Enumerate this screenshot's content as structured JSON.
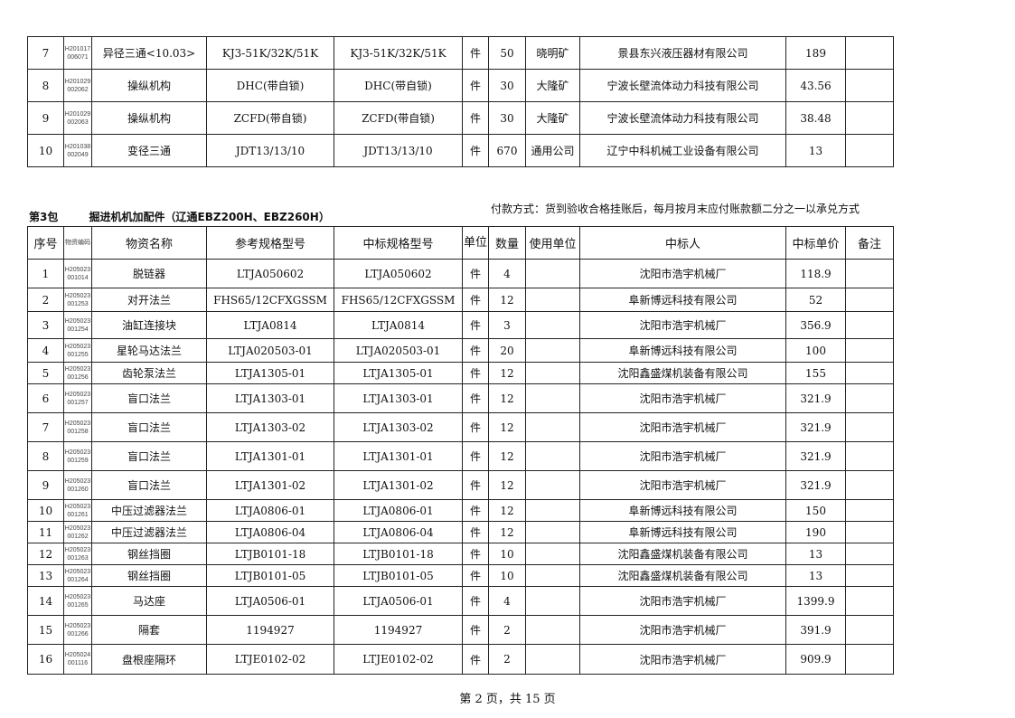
{
  "columns": [
    "序号",
    "物资编码",
    "物资名称",
    "参考规格型号",
    "中标规格型号",
    "单位",
    "数量",
    "使用单位",
    "中标人",
    "中标单价",
    "备注"
  ],
  "top_rows": [
    {
      "no": "7",
      "code": "H201017 006071",
      "name": "异径三通<10.03>",
      "ref": "KJ3-51K/32K/51K",
      "spec": "KJ3-51K/32K/51K",
      "unit": "件",
      "qty": "50",
      "user": "晓明矿",
      "winner": "景县东兴液压器材有限公司",
      "price": "189",
      "note": ""
    },
    {
      "no": "8",
      "code": "H201029 002062",
      "name": "操纵机构",
      "ref": "DHC(带自锁)",
      "spec": "DHC(带自锁)",
      "unit": "件",
      "qty": "30",
      "user": "大隆矿",
      "winner": "宁波长壁流体动力科技有限公司",
      "price": "43.56",
      "note": ""
    },
    {
      "no": "9",
      "code": "H201029 002063",
      "name": "操纵机构",
      "ref": "ZCFD(带自锁)",
      "spec": "ZCFD(带自锁)",
      "unit": "件",
      "qty": "30",
      "user": "大隆矿",
      "winner": "宁波长壁流体动力科技有限公司",
      "price": "38.48",
      "note": ""
    },
    {
      "no": "10",
      "code": "H201038 002049",
      "name": "变径三通",
      "ref": "JDT13/13/10",
      "spec": "JDT13/13/10",
      "unit": "件",
      "qty": "670",
      "user": "通用公司",
      "winner": "辽宁中科机械工业设备有限公司",
      "price": "13",
      "note": ""
    }
  ],
  "section": {
    "package": "第3包",
    "title": "掘进机机加配件（辽通EBZ200H、EBZ260H）",
    "payment": "付款方式：货到验收合格挂账后，每月按月末应付账款额二分之一以承兑方式"
  },
  "rows": [
    {
      "no": "1",
      "code": "H205023 001014",
      "name": "脱链器",
      "ref": "LTJA050602",
      "spec": "LTJA050602",
      "unit": "件",
      "qty": "4",
      "user": "",
      "winner": "沈阳市浩宇机械厂",
      "price": "118.9",
      "note": ""
    },
    {
      "no": "2",
      "code": "H205023 001253",
      "name": "对开法兰",
      "ref": "FHS65/12CFXGSSM",
      "spec": "FHS65/12CFXGSSM",
      "unit": "件",
      "qty": "12",
      "user": "",
      "winner": "阜新博远科技有限公司",
      "price": "52",
      "note": ""
    },
    {
      "no": "3",
      "code": "H205023 001254",
      "name": "油缸连接块",
      "ref": "LTJA0814",
      "spec": "LTJA0814",
      "unit": "件",
      "qty": "3",
      "user": "",
      "winner": "沈阳市浩宇机械厂",
      "price": "356.9",
      "note": ""
    },
    {
      "no": "4",
      "code": "H205023 001255",
      "name": "星轮马达法兰",
      "ref": "LTJA020503-01",
      "spec": "LTJA020503-01",
      "unit": "件",
      "qty": "20",
      "user": "",
      "winner": "阜新博远科技有限公司",
      "price": "100",
      "note": ""
    },
    {
      "no": "5",
      "code": "H205023 001256",
      "name": "齿轮泵法兰",
      "ref": "LTJA1305-01",
      "spec": "LTJA1305-01",
      "unit": "件",
      "qty": "12",
      "user": "",
      "winner": "沈阳鑫盛煤机装备有限公司",
      "price": "155",
      "note": ""
    },
    {
      "no": "6",
      "code": "H205023 001257",
      "name": "盲口法兰",
      "ref": "LTJA1303-01",
      "spec": "LTJA1303-01",
      "unit": "件",
      "qty": "12",
      "user": "",
      "winner": "沈阳市浩宇机械厂",
      "price": "321.9",
      "note": ""
    },
    {
      "no": "7",
      "code": "H205023 001258",
      "name": "盲口法兰",
      "ref": "LTJA1303-02",
      "spec": "LTJA1303-02",
      "unit": "件",
      "qty": "12",
      "user": "",
      "winner": "沈阳市浩宇机械厂",
      "price": "321.9",
      "note": ""
    },
    {
      "no": "8",
      "code": "H205023 001259",
      "name": "盲口法兰",
      "ref": "LTJA1301-01",
      "spec": "LTJA1301-01",
      "unit": "件",
      "qty": "12",
      "user": "",
      "winner": "沈阳市浩宇机械厂",
      "price": "321.9",
      "note": ""
    },
    {
      "no": "9",
      "code": "H205023 001260",
      "name": "盲口法兰",
      "ref": "LTJA1301-02",
      "spec": "LTJA1301-02",
      "unit": "件",
      "qty": "12",
      "user": "",
      "winner": "沈阳市浩宇机械厂",
      "price": "321.9",
      "note": ""
    },
    {
      "no": "10",
      "code": "H205023 001261",
      "name": "中压过滤器法兰",
      "ref": "LTJA0806-01",
      "spec": "LTJA0806-01",
      "unit": "件",
      "qty": "12",
      "user": "",
      "winner": "阜新博远科技有限公司",
      "price": "150",
      "note": ""
    },
    {
      "no": "11",
      "code": "H205023 001262",
      "name": "中压过滤器法兰",
      "ref": "LTJA0806-04",
      "spec": "LTJA0806-04",
      "unit": "件",
      "qty": "12",
      "user": "",
      "winner": "阜新博远科技有限公司",
      "price": "190",
      "note": ""
    },
    {
      "no": "12",
      "code": "H205023 001263",
      "name": "钢丝挡圈",
      "ref": "LTJB0101-18",
      "spec": "LTJB0101-18",
      "unit": "件",
      "qty": "10",
      "user": "",
      "winner": "沈阳鑫盛煤机装备有限公司",
      "price": "13",
      "note": ""
    },
    {
      "no": "13",
      "code": "H205023 001264",
      "name": "钢丝挡圈",
      "ref": "LTJB0101-05",
      "spec": "LTJB0101-05",
      "unit": "件",
      "qty": "10",
      "user": "",
      "winner": "沈阳鑫盛煤机装备有限公司",
      "price": "13",
      "note": ""
    },
    {
      "no": "14",
      "code": "H205023 001265",
      "name": "马达座",
      "ref": "LTJA0506-01",
      "spec": "LTJA0506-01",
      "unit": "件",
      "qty": "4",
      "user": "",
      "winner": "沈阳市浩宇机械厂",
      "price": "1399.9",
      "note": ""
    },
    {
      "no": "15",
      "code": "H205023 001266",
      "name": "隔套",
      "ref": "1194927",
      "spec": "1194927",
      "unit": "件",
      "qty": "2",
      "user": "",
      "winner": "沈阳市浩宇机械厂",
      "price": "391.9",
      "note": ""
    },
    {
      "no": "16",
      "code": "H205024 001116",
      "name": "盘根座隔环",
      "ref": "LTJE0102-02",
      "spec": "LTJE0102-02",
      "unit": "件",
      "qty": "2",
      "user": "",
      "winner": "沈阳市浩宇机械厂",
      "price": "909.9",
      "note": ""
    }
  ],
  "footer": "第 2 页，共 15 页"
}
